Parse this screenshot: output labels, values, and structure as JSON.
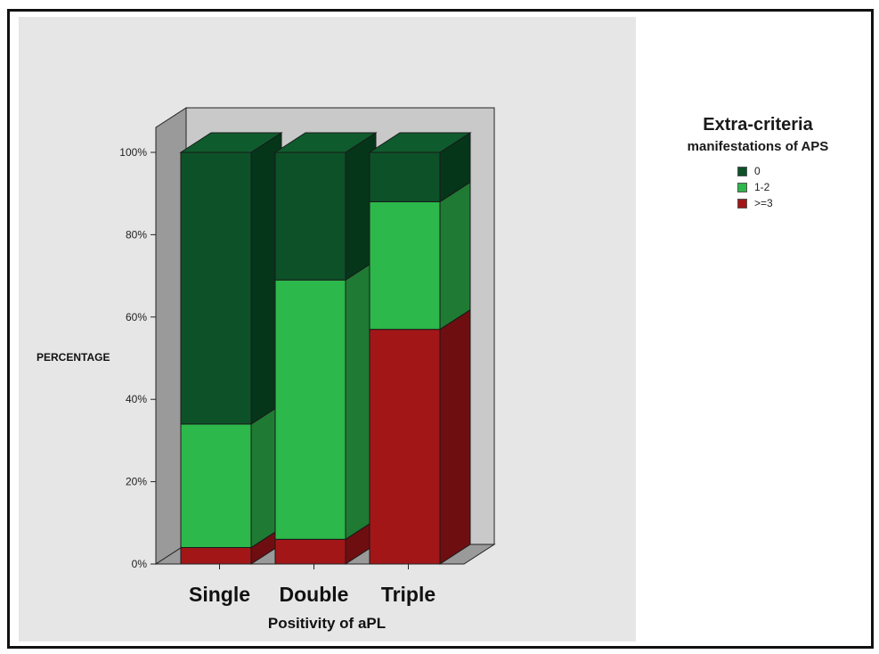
{
  "chart_data": {
    "type": "bar",
    "stacked": true,
    "three_d": true,
    "categories": [
      "Single",
      "Double",
      "Triple"
    ],
    "series": [
      {
        "name": ">=3",
        "values": [
          4,
          6,
          57
        ],
        "color": "#a31618",
        "side_color": "#6e0e10",
        "top_color": "#b51d1f"
      },
      {
        "name": "1-2",
        "values": [
          30,
          63,
          31
        ],
        "color": "#2cb84a",
        "side_color": "#1f7a33",
        "top_color": "#2fbf4d"
      },
      {
        "name": "0",
        "values": [
          66,
          31,
          12
        ],
        "color": "#0c5128",
        "side_color": "#05361a",
        "top_color": "#0e5c2d"
      }
    ],
    "ylim": [
      0,
      100
    ],
    "yticks": [
      "0%",
      "20%",
      "40%",
      "60%",
      "80%",
      "100%"
    ],
    "ylabel": "PERCENTAGE",
    "xlabel": "Positivity of aPL",
    "legend": {
      "title": "Extra-criteria",
      "subtitle": "manifestations of APS",
      "entries": [
        "0",
        "1-2",
        ">=3"
      ],
      "colors": [
        "#0c5128",
        "#2cb84a",
        "#a31618"
      ],
      "placement": "right"
    },
    "colors": {
      "wall": "#c9c9c9",
      "floor": "#9a9a9a",
      "plot_panel": "#e6e6e6"
    }
  }
}
